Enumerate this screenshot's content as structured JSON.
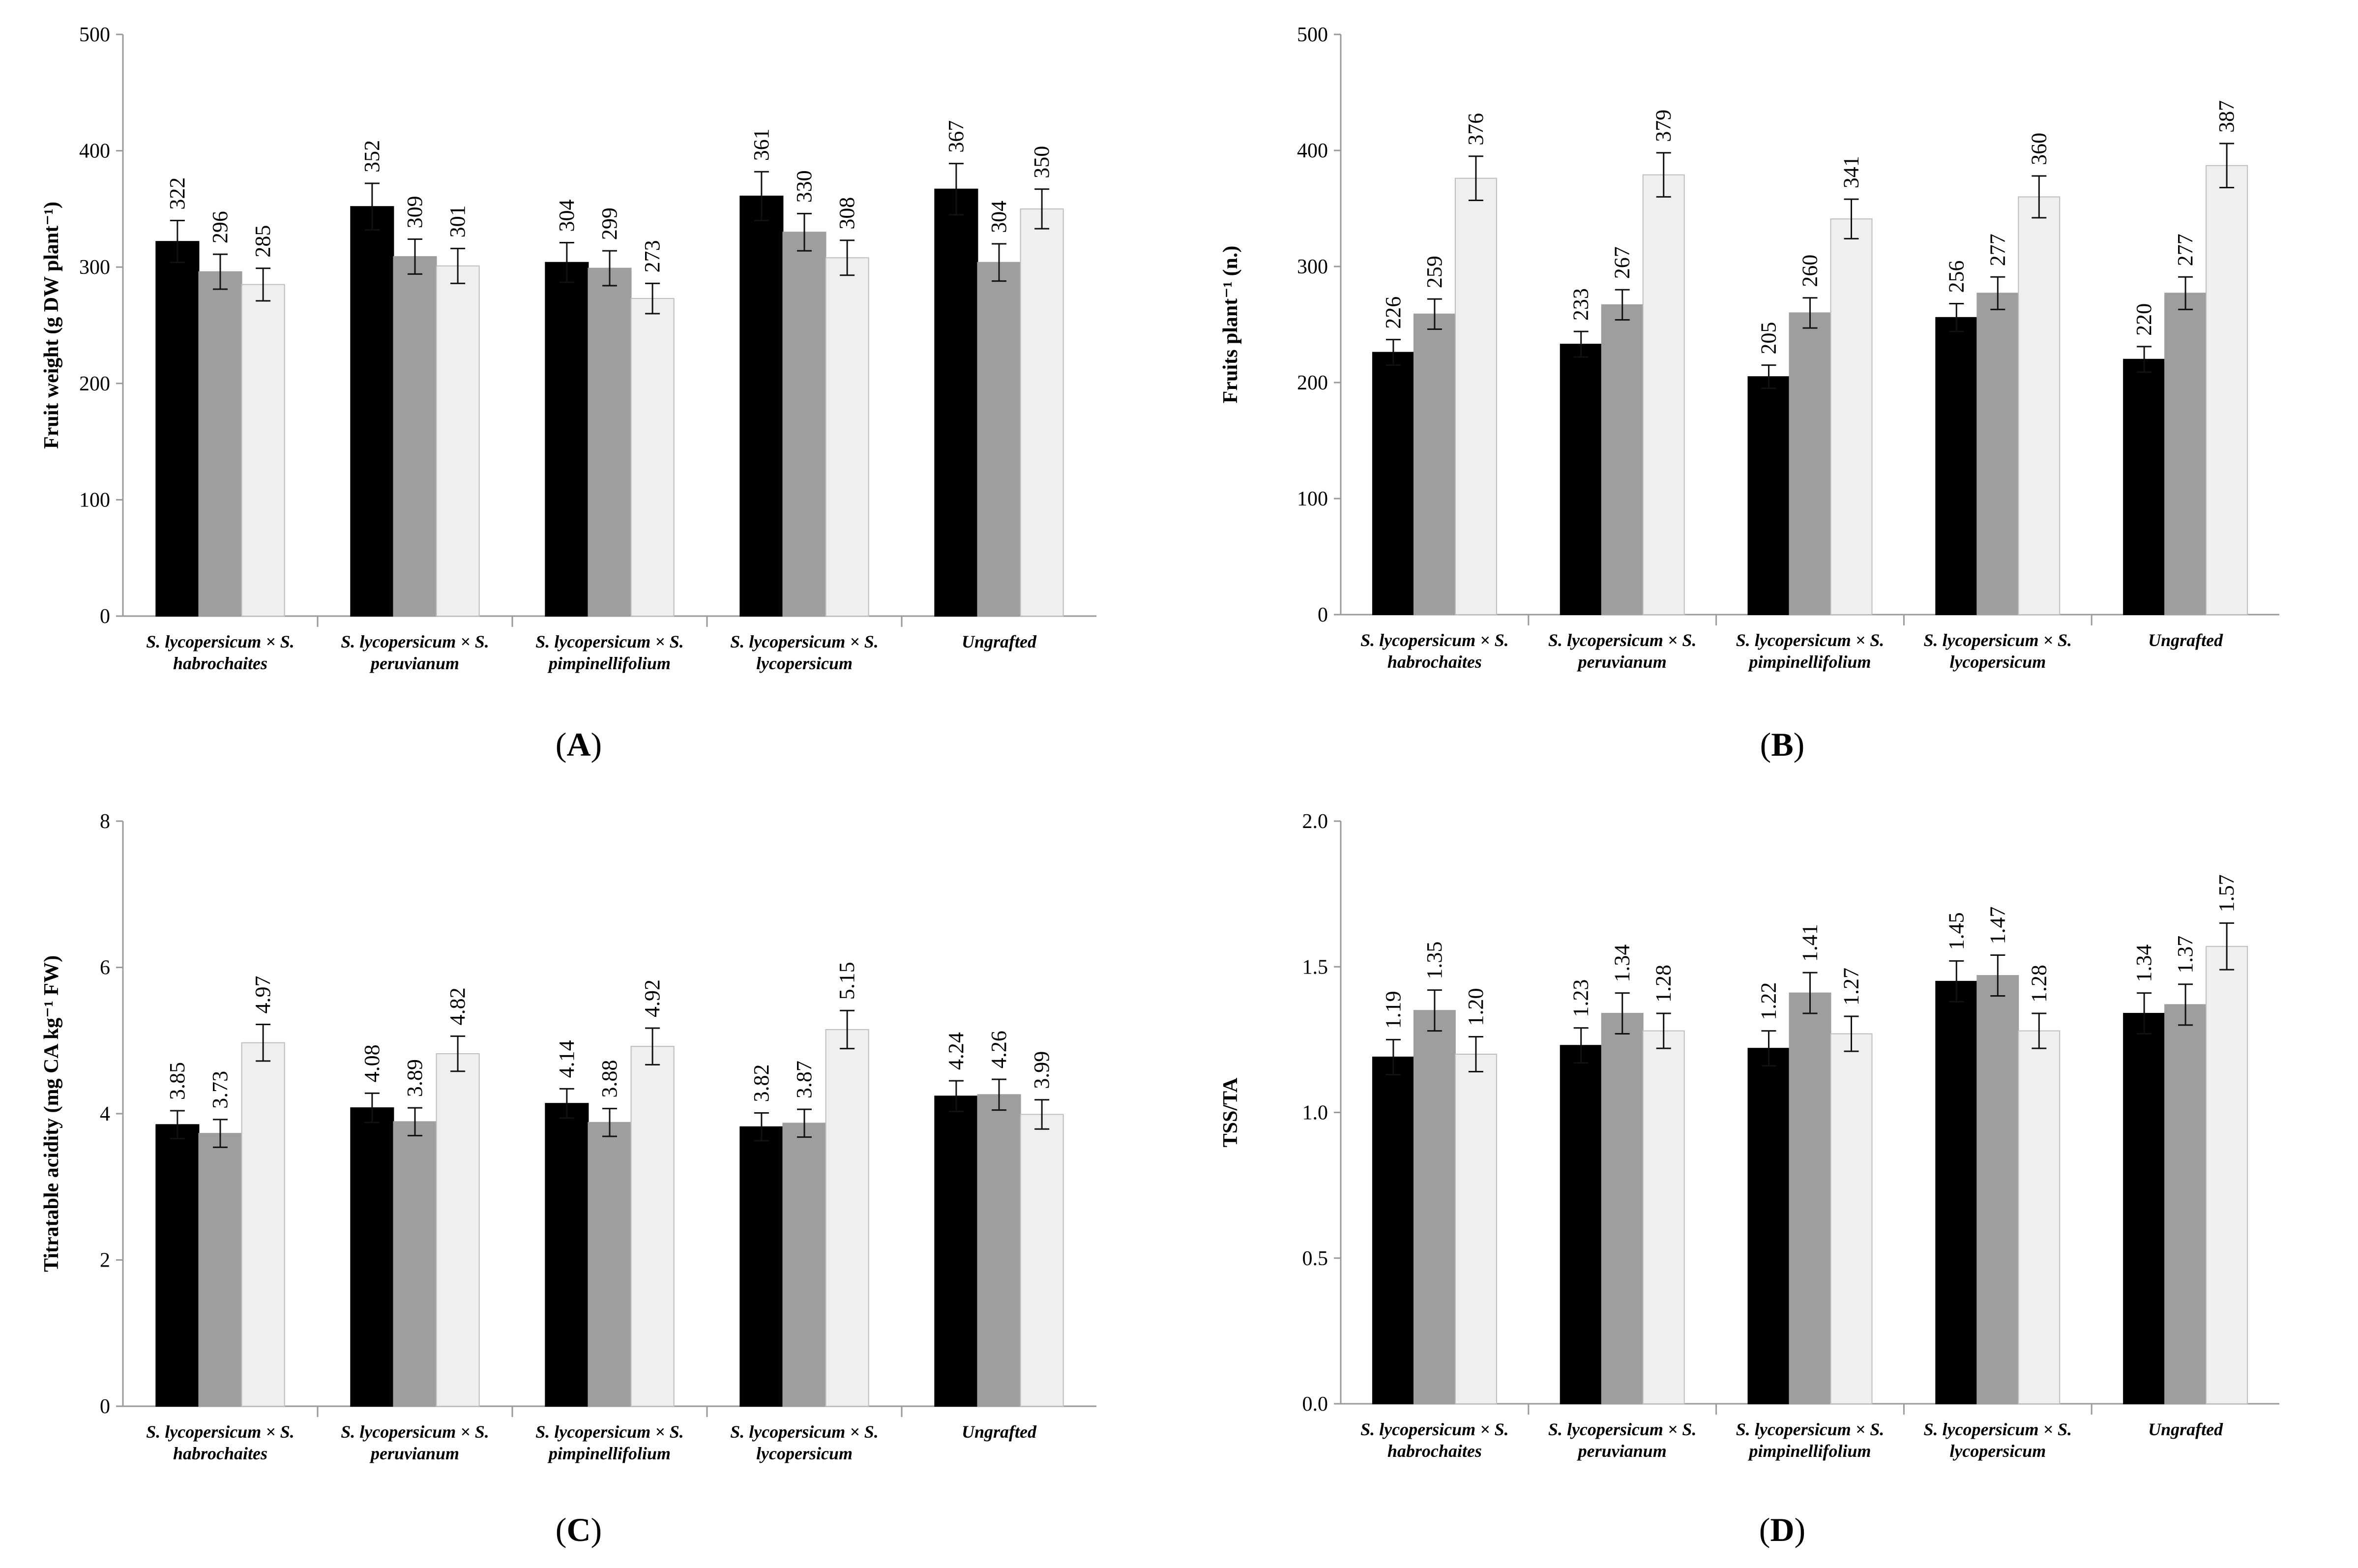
{
  "colors": {
    "series": [
      "#000000",
      "#9e9e9e",
      "#efefef"
    ],
    "axis": "#9a9a9a"
  },
  "chart_data": [
    {
      "type": "bar",
      "panel_label": [
        "(",
        "A",
        ")"
      ],
      "ylabel": "Fruit weight (g DW plant⁻¹)",
      "ylim": [
        0,
        500
      ],
      "yticks": [
        "0",
        "100",
        "200",
        "300",
        "400",
        "500"
      ],
      "categories": [
        [
          "S. lycopersicum × S.",
          "habrochaites"
        ],
        [
          "S. lycopersicum × S.",
          "peruvianum"
        ],
        [
          "S. lycopersicum × S.",
          "pimpinellifolium"
        ],
        [
          "S. lycopersicum × S.",
          "lycopersicum"
        ],
        [
          "Ungrafted"
        ]
      ],
      "series": [
        {
          "values": [
            322,
            352,
            304,
            361,
            367
          ],
          "errors": [
            18,
            20,
            17,
            21,
            22
          ],
          "labels": [
            "322",
            "352",
            "304",
            "361",
            "367"
          ]
        },
        {
          "values": [
            296,
            309,
            299,
            330,
            304
          ],
          "errors": [
            15,
            15,
            15,
            16,
            16
          ],
          "labels": [
            "296",
            "309",
            "299",
            "330",
            "304"
          ]
        },
        {
          "values": [
            285,
            301,
            273,
            308,
            350
          ],
          "errors": [
            14,
            15,
            13,
            15,
            17
          ],
          "labels": [
            "285",
            "301",
            "273",
            "308",
            "350"
          ]
        }
      ]
    },
    {
      "type": "bar",
      "panel_label": [
        "(",
        "B",
        ")"
      ],
      "ylabel": "Fruits plant⁻¹ (n.)",
      "ylim": [
        0,
        500
      ],
      "yticks": [
        "0",
        "100",
        "200",
        "300",
        "400",
        "500"
      ],
      "categories": [
        [
          "S. lycopersicum × S.",
          "habrochaites"
        ],
        [
          "S. lycopersicum × S.",
          "peruvianum"
        ],
        [
          "S. lycopersicum × S.",
          "pimpinellifolium"
        ],
        [
          "S. lycopersicum × S.",
          "lycopersicum"
        ],
        [
          "Ungrafted"
        ]
      ],
      "series": [
        {
          "values": [
            226,
            233,
            205,
            256,
            220
          ],
          "errors": [
            11,
            11,
            10,
            12,
            11
          ],
          "labels": [
            "226",
            "233",
            "205",
            "256",
            "220"
          ]
        },
        {
          "values": [
            259,
            267,
            260,
            277,
            277
          ],
          "errors": [
            13,
            13,
            13,
            14,
            14
          ],
          "labels": [
            "259",
            "267",
            "260",
            "277",
            "277"
          ]
        },
        {
          "values": [
            376,
            379,
            341,
            360,
            387
          ],
          "errors": [
            19,
            19,
            17,
            18,
            19
          ],
          "labels": [
            "376",
            "379",
            "341",
            "360",
            "387"
          ]
        }
      ]
    },
    {
      "type": "bar",
      "panel_label": [
        "(",
        "C",
        ")"
      ],
      "ylabel": "Titratable acidity (mg CA kg⁻¹ FW)",
      "ylim": [
        0,
        8
      ],
      "yticks": [
        "0",
        "2",
        "4",
        "6",
        "8"
      ],
      "categories": [
        [
          "S. lycopersicum × S.",
          "habrochaites"
        ],
        [
          "S. lycopersicum × S.",
          "peruvianum"
        ],
        [
          "S. lycopersicum × S.",
          "pimpinellifolium"
        ],
        [
          "S. lycopersicum × S.",
          "lycopersicum"
        ],
        [
          "Ungrafted"
        ]
      ],
      "series": [
        {
          "values": [
            3.85,
            4.08,
            4.14,
            3.82,
            4.24
          ],
          "errors": [
            0.19,
            0.2,
            0.2,
            0.19,
            0.21
          ],
          "labels": [
            "3.85",
            "4.08",
            "4.14",
            "3.82",
            "4.24"
          ]
        },
        {
          "values": [
            3.73,
            3.89,
            3.88,
            3.87,
            4.26
          ],
          "errors": [
            0.19,
            0.19,
            0.19,
            0.19,
            0.21
          ],
          "labels": [
            "3.73",
            "3.89",
            "3.88",
            "3.87",
            "4.26"
          ]
        },
        {
          "values": [
            4.97,
            4.82,
            4.92,
            5.15,
            3.99
          ],
          "errors": [
            0.25,
            0.24,
            0.25,
            0.26,
            0.2
          ],
          "labels": [
            "4.97",
            "4.82",
            "4.92",
            "5.15",
            "3.99"
          ]
        }
      ]
    },
    {
      "type": "bar",
      "panel_label": [
        "(",
        "D",
        ")"
      ],
      "ylabel": "TSS/TA",
      "ylim": [
        0,
        2
      ],
      "yticks": [
        "0.0",
        "0.5",
        "1.0",
        "1.5",
        "2.0"
      ],
      "categories": [
        [
          "S. lycopersicum × S.",
          "habrochaites"
        ],
        [
          "S. lycopersicum × S.",
          "peruvianum"
        ],
        [
          "S. lycopersicum × S.",
          "pimpinellifolium"
        ],
        [
          "S. lycopersicum × S.",
          "lycopersicum"
        ],
        [
          "Ungrafted"
        ]
      ],
      "series": [
        {
          "values": [
            1.19,
            1.23,
            1.22,
            1.45,
            1.34
          ],
          "errors": [
            0.06,
            0.06,
            0.06,
            0.07,
            0.07
          ],
          "labels": [
            "1.19",
            "1.23",
            "1.22",
            "1.45",
            "1.34"
          ]
        },
        {
          "values": [
            1.35,
            1.34,
            1.41,
            1.47,
            1.37
          ],
          "errors": [
            0.07,
            0.07,
            0.07,
            0.07,
            0.07
          ],
          "labels": [
            "1.35",
            "1.34",
            "1.41",
            "1.47",
            "1.37"
          ]
        },
        {
          "values": [
            1.2,
            1.28,
            1.27,
            1.28,
            1.57
          ],
          "errors": [
            0.06,
            0.06,
            0.06,
            0.06,
            0.08
          ],
          "labels": [
            "1.20",
            "1.28",
            "1.27",
            "1.28",
            "1.57"
          ]
        }
      ]
    }
  ]
}
